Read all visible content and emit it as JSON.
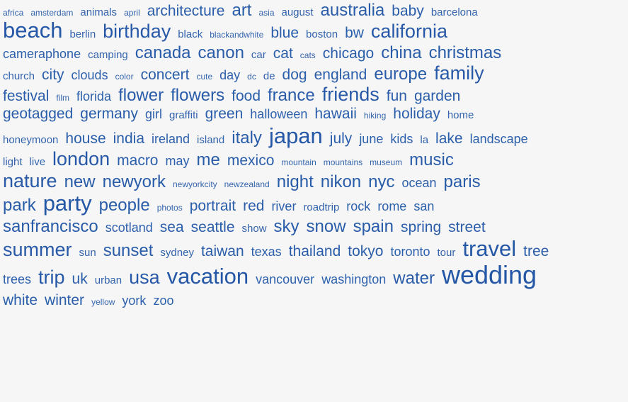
{
  "tag_cloud": {
    "rows": [
      [
        [
          "africa",
          0
        ],
        [
          "amsterdam",
          0
        ],
        [
          "animals",
          1
        ],
        [
          "april",
          0
        ],
        [
          "architecture",
          3
        ],
        [
          "art",
          4
        ],
        [
          "asia",
          0
        ],
        [
          "august",
          1
        ],
        [
          "australia",
          4
        ],
        [
          "baby",
          3
        ],
        [
          "barcelona",
          1
        ]
      ],
      [
        [
          "beach",
          6
        ],
        [
          "berlin",
          1
        ],
        [
          "birthday",
          5
        ],
        [
          "black",
          1
        ],
        [
          "blackandwhite",
          0
        ],
        [
          "blue",
          3
        ],
        [
          "boston",
          1
        ],
        [
          "bw",
          3
        ],
        [
          "california",
          5
        ]
      ],
      [
        [
          "cameraphone",
          2
        ],
        [
          "camping",
          1
        ],
        [
          "canada",
          4
        ],
        [
          "canon",
          4
        ],
        [
          "car",
          1
        ],
        [
          "cat",
          3
        ],
        [
          "cats",
          0
        ],
        [
          "chicago",
          3
        ],
        [
          "china",
          4
        ],
        [
          "christmas",
          4
        ]
      ],
      [
        [
          "church",
          1
        ],
        [
          "city",
          3
        ],
        [
          "clouds",
          2
        ],
        [
          "color",
          0
        ],
        [
          "concert",
          3
        ],
        [
          "cute",
          0
        ],
        [
          "day",
          2
        ],
        [
          "dc",
          0
        ],
        [
          "de",
          1
        ],
        [
          "dog",
          3
        ],
        [
          "england",
          3
        ],
        [
          "europe",
          4
        ],
        [
          "family",
          5
        ]
      ],
      [
        [
          "festival",
          3
        ],
        [
          "film",
          0
        ],
        [
          "florida",
          2
        ],
        [
          "flower",
          4
        ],
        [
          "flowers",
          4
        ],
        [
          "food",
          3
        ],
        [
          "france",
          4
        ],
        [
          "friends",
          5
        ],
        [
          "fun",
          3
        ],
        [
          "garden",
          3
        ]
      ],
      [
        [
          "geotagged",
          3
        ],
        [
          "germany",
          3
        ],
        [
          "girl",
          2
        ],
        [
          "graffiti",
          1
        ],
        [
          "green",
          3
        ],
        [
          "halloween",
          2
        ],
        [
          "hawaii",
          3
        ],
        [
          "hiking",
          0
        ],
        [
          "holiday",
          3
        ],
        [
          "home",
          1
        ]
      ],
      [
        [
          "honeymoon",
          1
        ],
        [
          "house",
          3
        ],
        [
          "india",
          3
        ],
        [
          "ireland",
          2
        ],
        [
          "island",
          1
        ],
        [
          "italy",
          4
        ],
        [
          "japan",
          6
        ],
        [
          "july",
          3
        ],
        [
          "june",
          2
        ],
        [
          "kids",
          2
        ],
        [
          "la",
          1
        ],
        [
          "lake",
          3
        ],
        [
          "landscape",
          2
        ]
      ],
      [
        [
          "light",
          1
        ],
        [
          "live",
          1
        ],
        [
          "london",
          5
        ],
        [
          "macro",
          3
        ],
        [
          "may",
          2
        ],
        [
          "me",
          4
        ],
        [
          "mexico",
          3
        ],
        [
          "mountain",
          0
        ],
        [
          "mountains",
          0
        ],
        [
          "museum",
          0
        ],
        [
          "music",
          4
        ]
      ],
      [
        [
          "nature",
          5
        ],
        [
          "new",
          4
        ],
        [
          "newyork",
          4
        ],
        [
          "newyorkcity",
          0
        ],
        [
          "newzealand",
          0
        ],
        [
          "night",
          4
        ],
        [
          "nikon",
          4
        ],
        [
          "nyc",
          4
        ],
        [
          "ocean",
          2
        ],
        [
          "paris",
          4
        ]
      ],
      [
        [
          "park",
          4
        ],
        [
          "party",
          6
        ],
        [
          "people",
          4
        ],
        [
          "photos",
          0
        ],
        [
          "portrait",
          3
        ],
        [
          "red",
          3
        ],
        [
          "river",
          2
        ],
        [
          "roadtrip",
          1
        ],
        [
          "rock",
          2
        ],
        [
          "rome",
          2
        ],
        [
          "san",
          2
        ]
      ],
      [
        [
          "sanfrancisco",
          4
        ],
        [
          "scotland",
          2
        ],
        [
          "sea",
          3
        ],
        [
          "seattle",
          3
        ],
        [
          "show",
          1
        ],
        [
          "sky",
          4
        ],
        [
          "snow",
          4
        ],
        [
          "spain",
          4
        ],
        [
          "spring",
          3
        ],
        [
          "street",
          3
        ]
      ],
      [
        [
          "summer",
          5
        ],
        [
          "sun",
          1
        ],
        [
          "sunset",
          4
        ],
        [
          "sydney",
          1
        ],
        [
          "taiwan",
          3
        ],
        [
          "texas",
          2
        ],
        [
          "thailand",
          3
        ],
        [
          "tokyo",
          3
        ],
        [
          "toronto",
          2
        ],
        [
          "tour",
          1
        ],
        [
          "travel",
          6
        ],
        [
          "tree",
          3
        ]
      ],
      [
        [
          "trees",
          2
        ],
        [
          "trip",
          5
        ],
        [
          "uk",
          3
        ],
        [
          "urban",
          1
        ],
        [
          "usa",
          5
        ],
        [
          "vacation",
          6
        ],
        [
          "vancouver",
          2
        ],
        [
          "washington",
          2
        ],
        [
          "water",
          4
        ],
        [
          "wedding",
          7
        ]
      ],
      [
        [
          "white",
          3
        ],
        [
          "winter",
          3
        ],
        [
          "yellow",
          0
        ],
        [
          "york",
          2
        ],
        [
          "zoo",
          2
        ]
      ]
    ]
  }
}
